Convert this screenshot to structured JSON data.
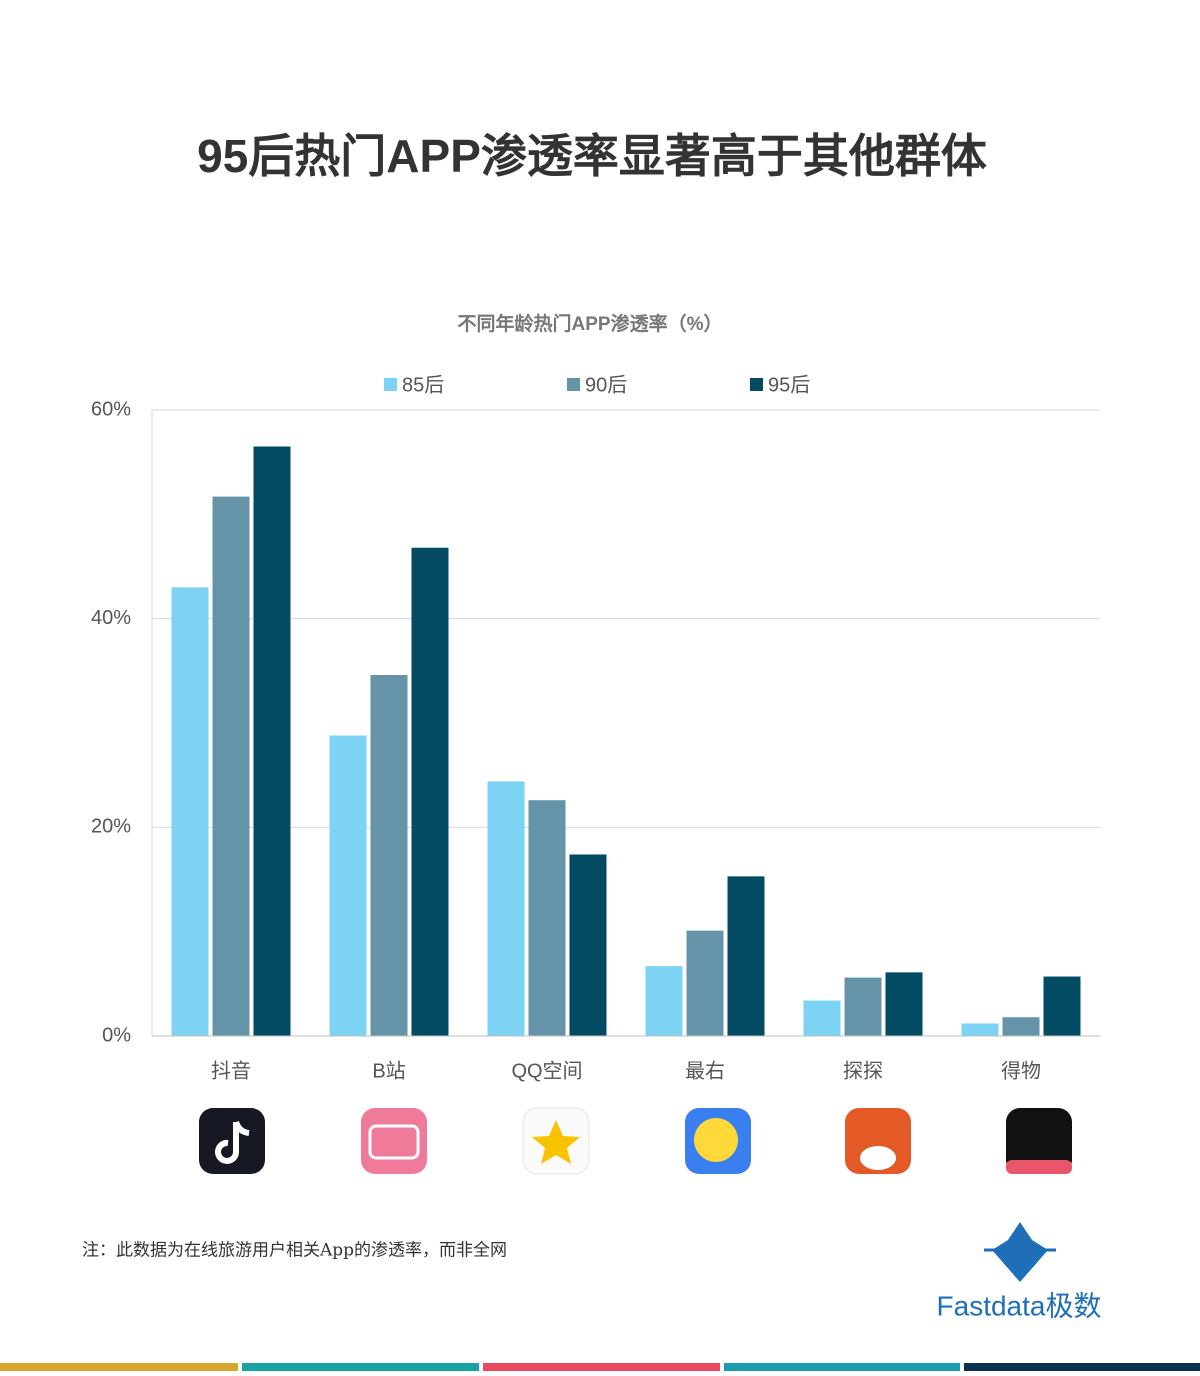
{
  "chart_data": {
    "type": "bar",
    "title": "95后热门APP渗透率显著高于其他群体",
    "subtitle": "不同年龄热门APP渗透率（%）",
    "categories": [
      "抖音",
      "B站",
      "QQ空间",
      "最右",
      "探探",
      "得物"
    ],
    "series": [
      {
        "name": "85后",
        "color": "#7dd3f3",
        "values": [
          43.0,
          28.8,
          24.4,
          6.7,
          3.4,
          1.2
        ]
      },
      {
        "name": "90后",
        "color": "#6594a8",
        "values": [
          51.7,
          34.6,
          22.6,
          10.1,
          5.6,
          1.8
        ]
      },
      {
        "name": "95后",
        "color": "#034b62",
        "values": [
          56.5,
          46.8,
          17.4,
          15.3,
          6.1,
          5.7
        ]
      }
    ],
    "ylim": [
      0,
      60
    ],
    "yticks": [
      {
        "value": 0,
        "label": "0%"
      },
      {
        "value": 20,
        "label": "20%"
      },
      {
        "value": 40,
        "label": "40%"
      },
      {
        "value": 60,
        "label": "60%"
      }
    ],
    "grid": true,
    "legend": "top",
    "note": "注：此数据为在线旅游用户相关App的渗透率，而非全网",
    "brand": "Fastdata极数"
  }
}
